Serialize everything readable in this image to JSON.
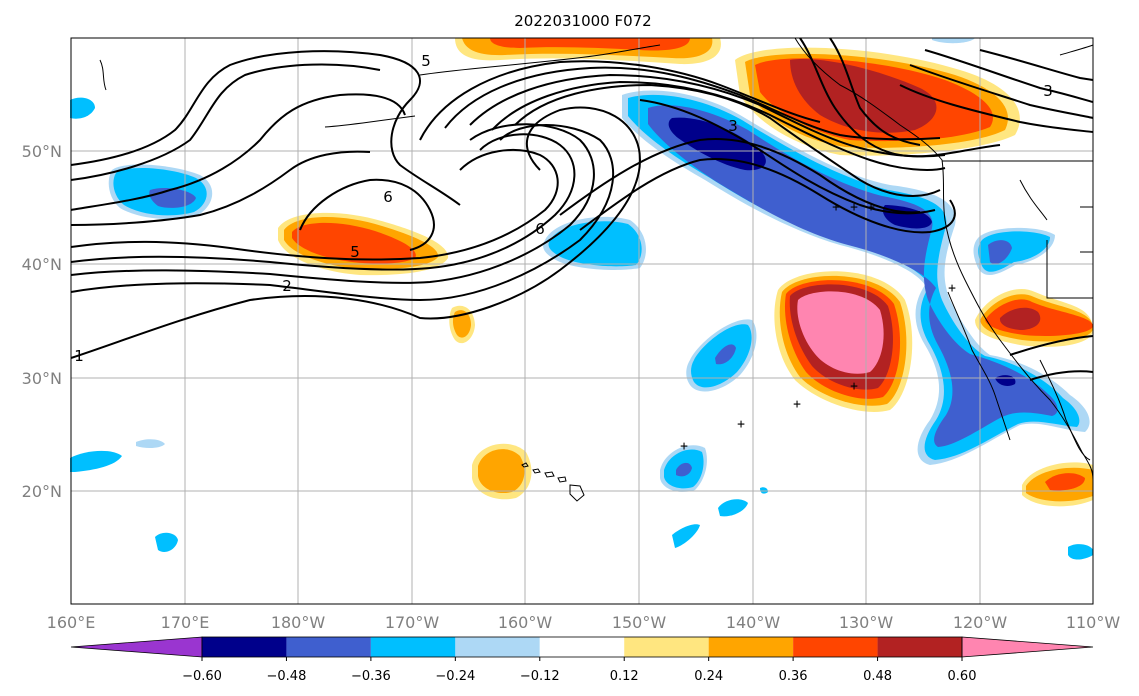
{
  "title": "2022031000 F072",
  "x_ticks": [
    "160°E",
    "170°E",
    "180°W",
    "170°W",
    "160°W",
    "150°W",
    "140°W",
    "130°W",
    "120°W",
    "110°W"
  ],
  "y_ticks": [
    "50°N",
    "40°N",
    "30°N",
    "20°N"
  ],
  "colorbar": {
    "labels": [
      "−0.60",
      "−0.48",
      "−0.36",
      "−0.24",
      "−0.12",
      "0.12",
      "0.24",
      "0.36",
      "0.48",
      "0.60"
    ],
    "colors": [
      "#9a35d0",
      "#00008b",
      "#3f5fcf",
      "#00bfff",
      "#add8f5",
      "#ffffff",
      "#ffe680",
      "#ffa500",
      "#ff4500",
      "#b22222",
      "#ff85b0"
    ]
  },
  "contour_labels": [
    "5",
    "6",
    "5",
    "2",
    "1",
    "6",
    "3",
    "3"
  ],
  "markers": [
    "+",
    "+",
    "+",
    "+",
    "+",
    "+",
    "+",
    "+"
  ],
  "layers": {
    "shading": "shaded anomaly field (fill)",
    "contours": "black isolines"
  }
}
